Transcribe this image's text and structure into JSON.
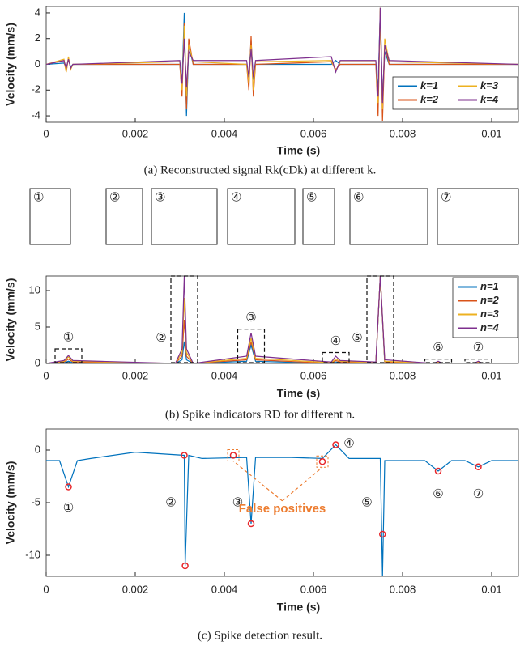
{
  "chart_data": [
    {
      "type": "line",
      "xlabel": "Time (s)",
      "ylabel": "Velocity (mm/s)",
      "caption": "(a) Reconstructed signal Rk(cDk) at different k.",
      "x": [
        0,
        0.0004,
        0.00045,
        0.0005,
        0.00055,
        0.0006,
        0.003,
        0.00305,
        0.0031,
        0.00315,
        0.0032,
        0.0033,
        0.0045,
        0.00455,
        0.0046,
        0.00465,
        0.0047,
        0.0064,
        0.0065,
        0.0066,
        0.0074,
        0.00745,
        0.0075,
        0.00755,
        0.0076,
        0.0077,
        0.0106
      ],
      "series": [
        {
          "name": "k=1",
          "color": "#0072BD",
          "values": [
            0,
            0.1,
            -0.3,
            0.4,
            -0.2,
            0,
            0,
            -1.5,
            4,
            -4,
            1.5,
            0,
            0,
            -1,
            1.8,
            -1.2,
            0,
            0,
            0.3,
            0,
            0,
            -2,
            4.4,
            -3,
            1,
            0,
            0
          ]
        },
        {
          "name": "k=2",
          "color": "#D95319",
          "values": [
            0,
            0.3,
            -0.6,
            0.5,
            -0.3,
            0,
            0,
            -2.5,
            3.2,
            -3.5,
            2,
            0,
            0,
            -2,
            2.2,
            -2.5,
            0,
            0.2,
            -0.4,
            0,
            0,
            -4,
            4.4,
            -4.4,
            1.5,
            0,
            0
          ]
        },
        {
          "name": "k=3",
          "color": "#EDB120",
          "values": [
            0,
            0.4,
            -0.6,
            0.6,
            -0.4,
            0,
            0.2,
            -2,
            3,
            -2.5,
            1.5,
            0.2,
            0,
            -1.5,
            1.5,
            -2,
            0.2,
            0.3,
            -0.5,
            0.2,
            0.2,
            -3,
            4.4,
            -3.5,
            2,
            0.2,
            0
          ]
        },
        {
          "name": "k=4",
          "color": "#7E2F8E",
          "values": [
            0,
            0.3,
            -0.3,
            0.4,
            -0.3,
            0,
            0.3,
            -1.5,
            2,
            -1.8,
            1,
            0.3,
            0.3,
            -1,
            1.2,
            -1,
            0.3,
            0.6,
            -0.6,
            0.3,
            0.3,
            -2.5,
            4.4,
            -3,
            1.5,
            0.3,
            0
          ]
        }
      ],
      "xlim": [
        0,
        0.0106
      ],
      "xticks": [
        0,
        0.002,
        0.004,
        0.006,
        0.008,
        0.01
      ],
      "ylim": [
        -4.5,
        4.5
      ],
      "yticks": [
        -4,
        -2,
        0,
        2,
        4
      ],
      "legend": "lower right",
      "legend_columns": 2
    },
    {
      "type": "line",
      "xlabel": "Time (s)",
      "ylabel": "Velocity (mm/s)",
      "caption": "(b) Spike indicators RD for different n.",
      "annotations": [
        "①",
        "②",
        "③",
        "④",
        "⑤",
        "⑥",
        "⑦"
      ],
      "x": [
        0,
        0.0004,
        0.0005,
        0.0006,
        0.0029,
        0.00305,
        0.0031,
        0.00315,
        0.0033,
        0.0045,
        0.0046,
        0.0047,
        0.0064,
        0.0065,
        0.0066,
        0.0074,
        0.0075,
        0.0076,
        0.0087,
        0.0088,
        0.0089,
        0.0096,
        0.0097,
        0.0098,
        0.0106
      ],
      "series": [
        {
          "name": "n=1",
          "color": "#0072BD",
          "values": [
            0,
            0.1,
            0.3,
            0.1,
            0,
            0.5,
            3,
            0.5,
            0,
            0.3,
            2.5,
            0.3,
            0,
            0.2,
            0.1,
            0,
            12,
            0,
            0,
            0.05,
            0,
            0,
            0.05,
            0,
            0
          ]
        },
        {
          "name": "n=2",
          "color": "#D95319",
          "values": [
            0,
            0.2,
            0.6,
            0.2,
            0,
            1,
            6,
            1,
            0,
            0.5,
            3,
            0.5,
            0,
            0.4,
            0.2,
            0,
            12,
            0.2,
            0,
            0.1,
            0,
            0,
            0.1,
            0,
            0
          ]
        },
        {
          "name": "n=3",
          "color": "#EDB120",
          "values": [
            0,
            0.3,
            0.9,
            0.3,
            0,
            1.5,
            9,
            1.5,
            0,
            0.7,
            3.5,
            0.7,
            0.1,
            0.6,
            0.3,
            0.1,
            12,
            0.3,
            0,
            0.2,
            0,
            0,
            0.2,
            0,
            0
          ]
        },
        {
          "name": "n=4",
          "color": "#7E2F8E",
          "values": [
            0,
            0.4,
            1.1,
            0.4,
            0,
            2,
            12,
            2,
            0,
            1,
            4.2,
            1,
            0.2,
            1,
            0.4,
            0.2,
            12,
            0.5,
            0,
            0.3,
            0,
            0,
            0.3,
            0,
            0
          ]
        }
      ],
      "xlim": [
        0,
        0.0106
      ],
      "xticks": [
        0,
        0.002,
        0.004,
        0.006,
        0.008,
        0.01
      ],
      "ylim": [
        0,
        12
      ],
      "yticks": [
        0,
        5,
        10
      ],
      "legend": "upper right",
      "legend_columns": 1
    },
    {
      "type": "line",
      "xlabel": "Time (s)",
      "ylabel": "Velocity (mm/s)",
      "caption": "(c) Spike detection result.",
      "annotations": [
        "①",
        "②",
        "③",
        "④",
        "⑤",
        "⑥",
        "⑦"
      ],
      "callout": "False positives",
      "callout_color": "#ED7D31",
      "series": [
        {
          "color": "#0072BD",
          "x": [
            0,
            0.0003,
            0.0005,
            0.0007,
            0.001,
            0.002,
            0.0031,
            0.00312,
            0.0032,
            0.0035,
            0.0045,
            0.0046,
            0.0047,
            0.0055,
            0.0062,
            0.0065,
            0.0068,
            0.0075,
            0.00755,
            0.0076,
            0.0077,
            0.0085,
            0.0088,
            0.0091,
            0.0094,
            0.0097,
            0.01,
            0.0106
          ],
          "values": [
            -1,
            -1,
            -3.5,
            -1,
            -0.8,
            -0.2,
            -0.5,
            -11,
            -0.5,
            -0.8,
            -0.7,
            -7,
            -0.7,
            -0.7,
            -0.8,
            0.5,
            -0.8,
            -0.8,
            -12,
            -1,
            -1,
            -1,
            -2,
            -1,
            -1,
            -1.6,
            -1,
            -1
          ]
        },
        {
          "color": "#E8262A",
          "marker": "circle",
          "x": [
            0.0005,
            0.0031,
            0.00312,
            0.0042,
            0.0046,
            0.0062,
            0.0065,
            0.00755,
            0.0088,
            0.0097
          ],
          "values": [
            -3.5,
            -0.5,
            -11,
            -0.5,
            -7,
            -1.1,
            0.5,
            -8,
            -2,
            -1.6
          ]
        }
      ],
      "xlim": [
        0,
        0.0106
      ],
      "xticks": [
        0,
        0.002,
        0.004,
        0.006,
        0.008,
        0.01
      ],
      "ylim": [
        -12,
        2
      ],
      "yticks": [
        -10,
        -5,
        0
      ]
    }
  ]
}
